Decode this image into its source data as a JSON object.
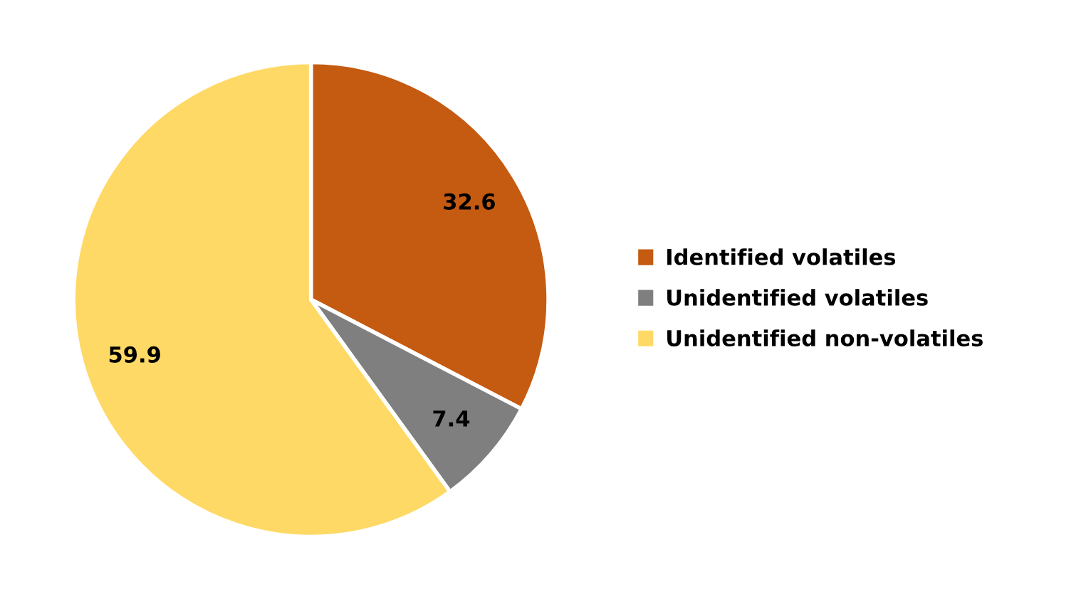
{
  "chart_data": {
    "type": "pie",
    "categories": [
      "Identified volatiles",
      "Unidentified volatiles",
      "Unidentified non-volatiles"
    ],
    "values": [
      32.6,
      7.4,
      59.9
    ],
    "colors": [
      "#c55a11",
      "#7f7f7f",
      "#ffd966"
    ],
    "data_labels": true,
    "legend": "right"
  }
}
